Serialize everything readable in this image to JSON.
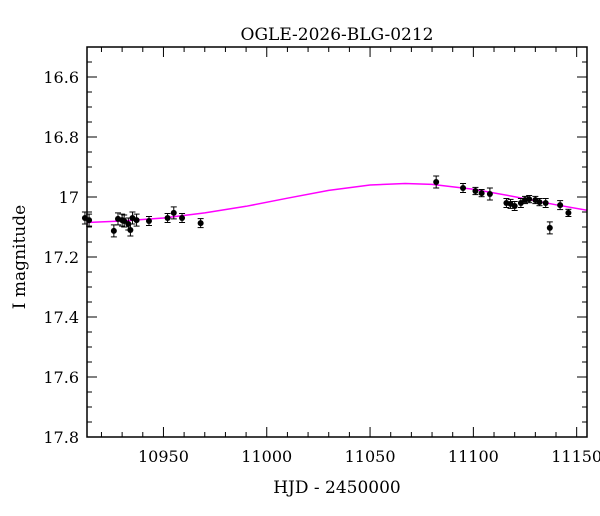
{
  "chart_data": {
    "type": "scatter",
    "title": "OGLE-2026-BLG-0212",
    "xlabel": "HJD - 2450000",
    "ylabel": "I magnitude",
    "xlim": [
      10913,
      11155
    ],
    "ylim": [
      17.8,
      16.5
    ],
    "y_inverted": true,
    "xticks": [
      10950,
      11000,
      11050,
      11100,
      11150
    ],
    "xtick_labels": [
      "10950",
      "11000",
      "11050",
      "11100",
      "11150"
    ],
    "yticks": [
      16.6,
      16.8,
      17,
      17.2,
      17.4,
      17.6,
      17.8
    ],
    "ytick_labels": [
      "16.6",
      "16.8",
      "17",
      "17.2",
      "17.4",
      "17.6",
      "17.8"
    ],
    "grid": false,
    "colors": {
      "points": "#000000",
      "model": "#ff00ff"
    },
    "series": [
      {
        "name": "data",
        "x": [
          10912,
          10914,
          10926,
          10928,
          10930,
          10931,
          10933,
          10934,
          10935,
          10937,
          10943,
          10952,
          10955,
          10959,
          10968,
          11082,
          11095,
          11101,
          11104,
          11108,
          11116,
          11118,
          11120,
          11123,
          11125,
          11127,
          11130,
          11132,
          11135,
          11137,
          11142,
          11146
        ],
        "y": [
          17.07,
          17.077,
          17.113,
          17.073,
          17.077,
          17.08,
          17.09,
          17.11,
          17.07,
          17.077,
          17.08,
          17.07,
          17.053,
          17.07,
          17.087,
          16.95,
          16.97,
          16.98,
          16.987,
          16.99,
          17.02,
          17.023,
          17.03,
          17.02,
          17.01,
          17.007,
          17.01,
          17.017,
          17.02,
          17.103,
          17.027,
          17.053
        ],
        "yerr": [
          0.02,
          0.02,
          0.02,
          0.02,
          0.02,
          0.02,
          0.02,
          0.02,
          0.02,
          0.02,
          0.015,
          0.015,
          0.02,
          0.015,
          0.015,
          0.02,
          0.015,
          0.012,
          0.012,
          0.02,
          0.015,
          0.015,
          0.015,
          0.015,
          0.012,
          0.012,
          0.012,
          0.012,
          0.015,
          0.02,
          0.015,
          0.012
        ]
      },
      {
        "name": "model",
        "type": "line",
        "x": [
          10913,
          10930,
          10950,
          10970,
          10990,
          11010,
          11030,
          11050,
          11067,
          11080,
          11100,
          11120,
          11140,
          11155
        ],
        "y": [
          17.085,
          17.08,
          17.07,
          17.053,
          17.031,
          17.004,
          16.978,
          16.96,
          16.955,
          16.958,
          16.974,
          16.999,
          17.026,
          17.044
        ]
      }
    ]
  }
}
